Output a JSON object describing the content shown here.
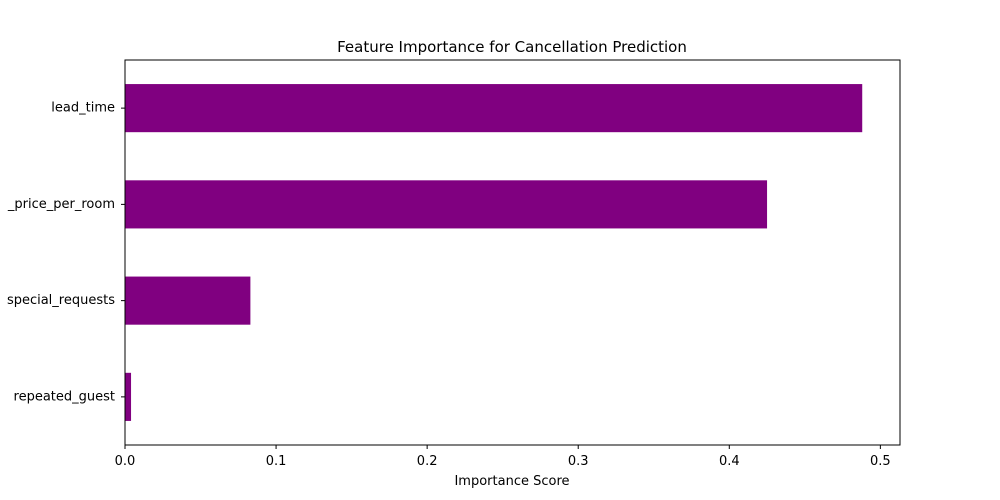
{
  "chart_data": {
    "type": "bar",
    "orientation": "horizontal",
    "title": "Feature Importance for Cancellation Prediction",
    "xlabel": "Importance Score",
    "ylabel": "",
    "categories": [
      "lead_time",
      "_price_per_room",
      "special_requests",
      "repeated_guest"
    ],
    "values": [
      0.488,
      0.425,
      0.083,
      0.004
    ],
    "xlim": [
      0,
      0.513
    ],
    "xticks": [
      0.0,
      0.1,
      0.2,
      0.3,
      0.4,
      0.5
    ],
    "xtick_labels": [
      "0.0",
      "0.1",
      "0.2",
      "0.3",
      "0.4",
      "0.5"
    ],
    "bar_color": "#800080",
    "grid": false,
    "legend": "none"
  }
}
